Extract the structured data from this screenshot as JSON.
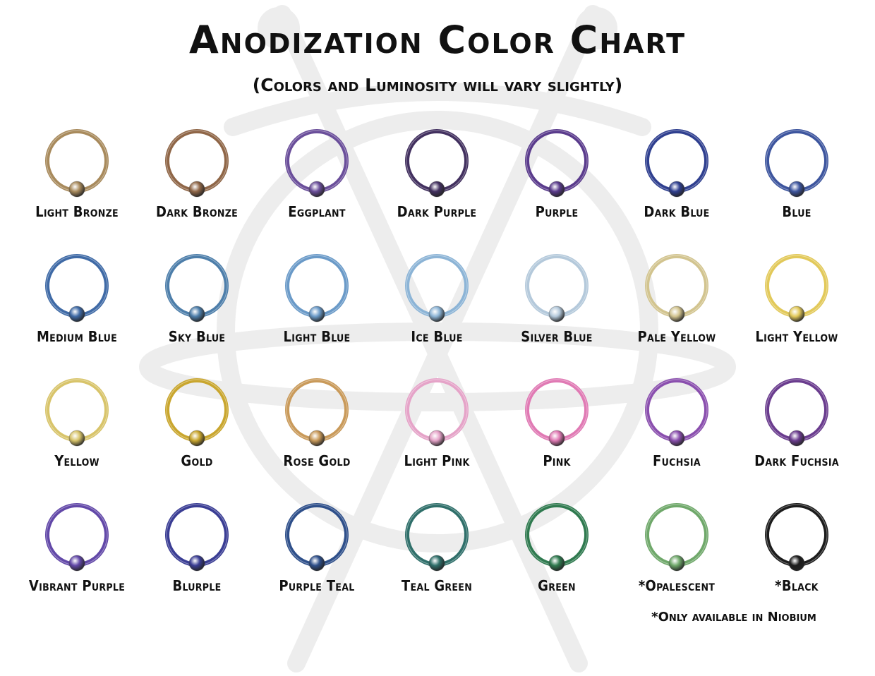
{
  "header": {
    "title": "Anodization Color Chart",
    "subtitle": "(Colors and Luminosity will vary slightly)"
  },
  "swatches": [
    {
      "label": "Light Bronze",
      "color": "#a88a5c"
    },
    {
      "label": "Dark Bronze",
      "color": "#8f6647"
    },
    {
      "label": "Eggplant",
      "color": "#6a4e9a"
    },
    {
      "label": "Dark Purple",
      "color": "#42305f"
    },
    {
      "label": "Purple",
      "color": "#5a3b8c"
    },
    {
      "label": "Dark Blue",
      "color": "#2f3f8f"
    },
    {
      "label": "Blue",
      "color": "#3d559e"
    },
    {
      "label": "Medium Blue",
      "color": "#3f6aa6"
    },
    {
      "label": "Sky Blue",
      "color": "#4d7eaa"
    },
    {
      "label": "Light Blue",
      "color": "#6a9ac8"
    },
    {
      "label": "Ice Blue",
      "color": "#8cb4d6"
    },
    {
      "label": "Silver Blue",
      "color": "#b4c9db"
    },
    {
      "label": "Pale Yellow",
      "color": "#d2c48f"
    },
    {
      "label": "Light Yellow",
      "color": "#e2c95a"
    },
    {
      "label": "Yellow",
      "color": "#d8c46a"
    },
    {
      "label": "Gold",
      "color": "#c9a62e"
    },
    {
      "label": "Rose Gold",
      "color": "#c99a5a"
    },
    {
      "label": "Light Pink",
      "color": "#e5a3c8"
    },
    {
      "label": "Pink",
      "color": "#e07ab4"
    },
    {
      "label": "Fuchsia",
      "color": "#8a4fae"
    },
    {
      "label": "Dark Fuchsia",
      "color": "#6a3c8e"
    },
    {
      "label": "Vibrant Purple",
      "color": "#6248a8"
    },
    {
      "label": "Blurple",
      "color": "#3a3d94"
    },
    {
      "label": "Purple Teal",
      "color": "#2e4f8a"
    },
    {
      "label": "Teal Green",
      "color": "#2f6f6a"
    },
    {
      "label": "Green",
      "color": "#2f7a4f"
    },
    {
      "label": "*Opalescent",
      "color": "#6fa86a"
    },
    {
      "label": "*Black",
      "color": "#1c1c1c"
    }
  ],
  "footnote": "*Only available in Niobium"
}
